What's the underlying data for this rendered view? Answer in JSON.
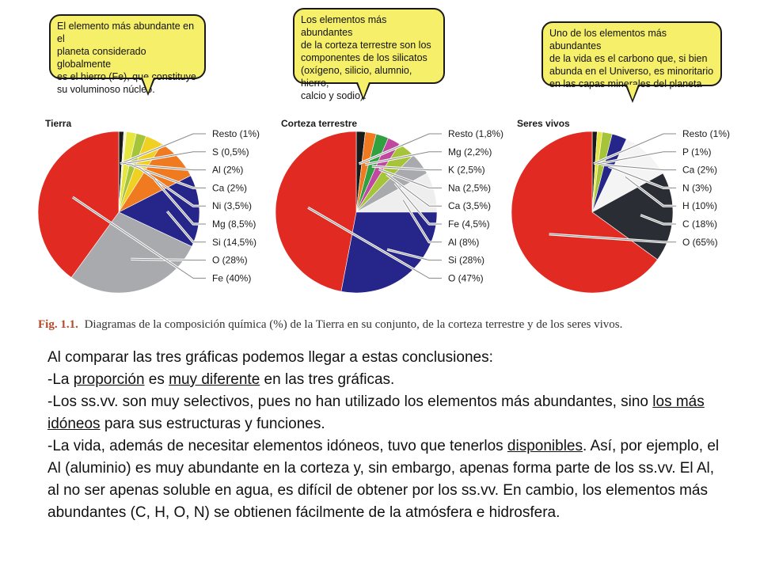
{
  "bubbles": [
    "El elemento más abundante en el\nplaneta considerado globalmente\nes el hierro (Fe), que constituye\nsu voluminoso núcleo.",
    "Los elementos más abundantes\nde la corteza terrestre son los\ncomponentes de los silicatos\n(oxígeno, silicio, alumnio, hierro,\ncalcio y sodio).",
    "Uno de los elementos más abundantes\nde la vida es el carbono que, si bien\nabunda en el Universo, es minoritario\nen las capas minerales del planeta"
  ],
  "chart_data": [
    {
      "type": "pie",
      "title": "Tierra",
      "slices": [
        {
          "label": "Resto (1%)",
          "value": 1,
          "color": "#1a1a1a"
        },
        {
          "label": "S (0,5%)",
          "value": 0.5,
          "color": "#f2f2d0"
        },
        {
          "label": "Al (2%)",
          "value": 2,
          "color": "#e6e640"
        },
        {
          "label": "Ca (2%)",
          "value": 2,
          "color": "#a6c43a"
        },
        {
          "label": "Ni (3,5%)",
          "value": 3.5,
          "color": "#f0d020"
        },
        {
          "label": "Mg (8,5%)",
          "value": 8.5,
          "color": "#f07a20"
        },
        {
          "label": "Si (14,5%)",
          "value": 14.5,
          "color": "#25258a"
        },
        {
          "label": "O (28%)",
          "value": 28,
          "color": "#a8aaae"
        },
        {
          "label": "Fe (40%)",
          "value": 40,
          "color": "#e02a22"
        }
      ]
    },
    {
      "type": "pie",
      "title": "Corteza terrestre",
      "slices": [
        {
          "label": "Resto (1,8%)",
          "value": 1.8,
          "color": "#1a1a1a"
        },
        {
          "label": "Mg (2,2%)",
          "value": 2.2,
          "color": "#f07a20"
        },
        {
          "label": "K (2,5%)",
          "value": 2.5,
          "color": "#30a040"
        },
        {
          "label": "Na (2,5%)",
          "value": 2.5,
          "color": "#c048a0"
        },
        {
          "label": "Ca (3,5%)",
          "value": 3.5,
          "color": "#a6c43a"
        },
        {
          "label": "Fe (4,5%)",
          "value": 4.5,
          "color": "#a8aaae"
        },
        {
          "label": "Al (8%)",
          "value": 8,
          "color": "#eeeeee"
        },
        {
          "label": "Si (28%)",
          "value": 28,
          "color": "#25258a"
        },
        {
          "label": "O (47%)",
          "value": 47,
          "color": "#e02a22"
        }
      ]
    },
    {
      "type": "pie",
      "title": "Seres vivos",
      "slices": [
        {
          "label": "Resto (1%)",
          "value": 1,
          "color": "#1a1a1a"
        },
        {
          "label": "P (1%)",
          "value": 1,
          "color": "#e6e640"
        },
        {
          "label": "Ca (2%)",
          "value": 2,
          "color": "#a6c43a"
        },
        {
          "label": "N (3%)",
          "value": 3,
          "color": "#25258a"
        },
        {
          "label": "H (10%)",
          "value": 10,
          "color": "#f4f4f4"
        },
        {
          "label": "C (18%)",
          "value": 18,
          "color": "#2a2d33"
        },
        {
          "label": "O (65%)",
          "value": 65,
          "color": "#e02a22"
        }
      ]
    }
  ],
  "caption": {
    "fig": "Fig. 1.1.",
    "text": "Diagramas de la composición química (%) de la Tierra en su conjunto, de la corteza terrestre y de los seres vivos."
  },
  "body": {
    "p1": "Al comparar las tres gráficas podemos llegar a estas conclusiones:",
    "p2_a": "-La ",
    "p2_u1": "proporción",
    "p2_b": " es ",
    "p2_u2": "muy diferente",
    "p2_c": " en las tres gráficas.",
    "p3_a": "-Los ss.vv. son muy selectivos, pues no han utilizado los elementos más abundantes, sino ",
    "p3_u": "los más idóneos",
    "p3_b": " para sus estructuras y funciones.",
    "p4_a": "-La vida, además de necesitar elementos idóneos, tuvo que tenerlos ",
    "p4_u": "disponibles",
    "p4_b": ". Así, por ejemplo, el Al (aluminio) es muy abundante en la corteza y, sin embargo, apenas forma parte de los ss.vv. El Al, al no ser apenas soluble en agua, es difícil de obtener por los ss.vv. En cambio, los elementos más abundantes (C, H, O, N) se obtienen fácilmente de la atmósfera e hidrosfera."
  }
}
